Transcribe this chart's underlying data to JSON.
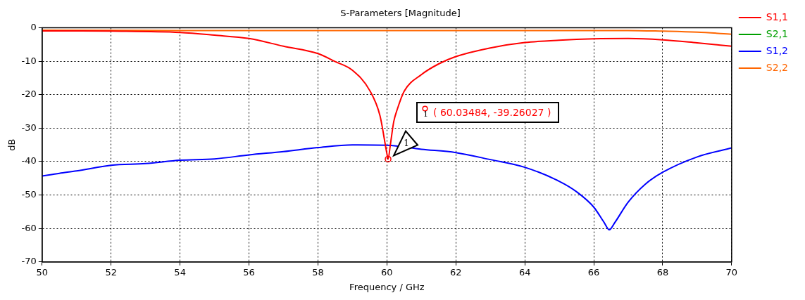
{
  "chart_data": {
    "type": "line",
    "title": "S-Parameters [Magnitude]",
    "xlabel": "Frequency / GHz",
    "ylabel": "dB",
    "xlim": [
      50,
      70
    ],
    "ylim": [
      -70,
      0
    ],
    "xticks": [
      50,
      52,
      54,
      56,
      58,
      60,
      62,
      64,
      66,
      68,
      70
    ],
    "yticks": [
      -70,
      -60,
      -50,
      -40,
      -30,
      -20,
      -10,
      0
    ],
    "grid": true,
    "legend": "top right",
    "marker": "none",
    "line_style": "solid",
    "series": [
      {
        "name": "S1,1",
        "color": "#ff0000",
        "x": [
          50,
          52,
          54,
          55,
          56,
          57,
          58,
          58.5,
          59,
          59.5,
          59.8,
          60,
          60.035,
          60.1,
          60.2,
          60.3,
          60.5,
          61,
          61.5,
          62,
          63,
          64,
          65,
          66,
          67,
          68,
          69,
          70
        ],
        "values": [
          -0.9,
          -1.0,
          -1.4,
          -2.2,
          -3.2,
          -5.5,
          -7.7,
          -10.1,
          -12.7,
          -18.7,
          -26.3,
          -37.6,
          -39.26,
          -35,
          -28,
          -24.4,
          -19,
          -14,
          -10.8,
          -8.6,
          -6,
          -4.4,
          -3.7,
          -3.3,
          -3.2,
          -3.6,
          -4.5,
          -5.5
        ]
      },
      {
        "name": "S2,1",
        "color": "#00a000"
      },
      {
        "name": "S1,2",
        "color": "#0000ff",
        "x": [
          50,
          50.5,
          51,
          52,
          53,
          54,
          55,
          56,
          57,
          58,
          59,
          60,
          61,
          62,
          63,
          64,
          65,
          65.5,
          66,
          66.3,
          66.45,
          66.6,
          67,
          67.5,
          68,
          69,
          70
        ],
        "values": [
          -44.3,
          -43.5,
          -42.8,
          -41.1,
          -40.6,
          -39.6,
          -39.2,
          -38,
          -37,
          -35.8,
          -35,
          -35.1,
          -36.3,
          -37.3,
          -39.4,
          -41.7,
          -45.9,
          -49,
          -53.6,
          -58.2,
          -60.4,
          -58.4,
          -52.1,
          -46.7,
          -43.2,
          -38.6,
          -35.9
        ]
      },
      {
        "name": "S2,2",
        "color": "#ff6600",
        "x": [
          50,
          54,
          58,
          62,
          66,
          67,
          68,
          69,
          70
        ],
        "values": [
          -0.7,
          -0.8,
          -0.8,
          -0.8,
          -0.8,
          -0.8,
          -1.0,
          -1.3,
          -1.9
        ]
      }
    ],
    "annotations": [
      "( 60.03484, -39.26027 )",
      {
        "text": "1",
        "x": 60.03484,
        "y": -39.26027
      },
      "1"
    ]
  }
}
